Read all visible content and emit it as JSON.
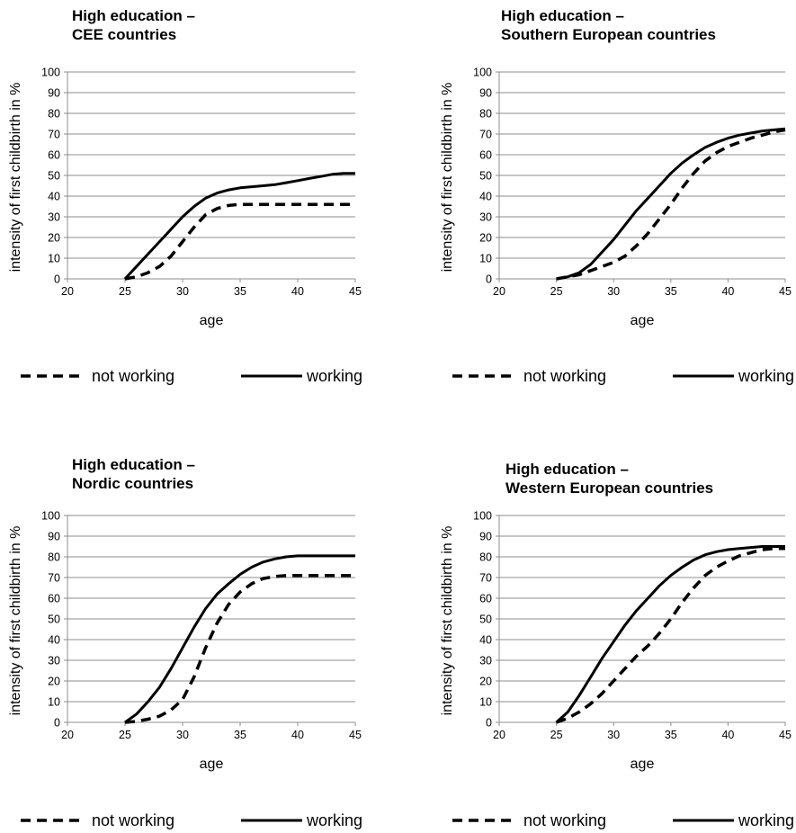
{
  "chart_data": [
    {
      "type": "line",
      "title_lines": [
        "High education –",
        "CEE countries"
      ],
      "xlabel": "age",
      "ylabel": "intensity of first childbirth in %",
      "xlim": [
        20,
        45
      ],
      "ylim": [
        0,
        100
      ],
      "xticks": [
        "20",
        "25",
        "30",
        "35",
        "40",
        "45"
      ],
      "yticks": [
        "0",
        "10",
        "20",
        "30",
        "40",
        "50",
        "60",
        "70",
        "80",
        "90",
        "100"
      ],
      "series": [
        {
          "name": "not working",
          "style": "dashed",
          "points": [
            [
              25,
              0
            ],
            [
              26,
              1
            ],
            [
              27,
              3
            ],
            [
              28,
              6
            ],
            [
              29,
              11
            ],
            [
              30,
              18
            ],
            [
              31,
              25
            ],
            [
              32,
              31
            ],
            [
              33,
              34
            ],
            [
              34,
              35.5
            ],
            [
              35,
              36
            ],
            [
              37,
              36
            ],
            [
              40,
              36
            ],
            [
              45,
              36
            ]
          ]
        },
        {
          "name": "working",
          "style": "solid",
          "points": [
            [
              25,
              0
            ],
            [
              26,
              6
            ],
            [
              27,
              12
            ],
            [
              28,
              18
            ],
            [
              29,
              24
            ],
            [
              30,
              30
            ],
            [
              31,
              35
            ],
            [
              32,
              39
            ],
            [
              33,
              41.5
            ],
            [
              34,
              43
            ],
            [
              35,
              44
            ],
            [
              36,
              44.5
            ],
            [
              37,
              45
            ],
            [
              38,
              45.5
            ],
            [
              39,
              46.5
            ],
            [
              40,
              47.5
            ],
            [
              41,
              48.5
            ],
            [
              42,
              49.5
            ],
            [
              43,
              50.5
            ],
            [
              44,
              51
            ],
            [
              45,
              51
            ]
          ]
        }
      ]
    },
    {
      "type": "line",
      "title_lines": [
        "High education –",
        "Southern European countries"
      ],
      "xlabel": "age",
      "ylabel": "intensity of first childbirth in %",
      "xlim": [
        20,
        45
      ],
      "ylim": [
        0,
        100
      ],
      "xticks": [
        "20",
        "25",
        "30",
        "35",
        "40",
        "45"
      ],
      "yticks": [
        "0",
        "10",
        "20",
        "30",
        "40",
        "50",
        "60",
        "70",
        "80",
        "90",
        "100"
      ],
      "series": [
        {
          "name": "not working",
          "style": "dashed",
          "points": [
            [
              25,
              0
            ],
            [
              26,
              1
            ],
            [
              27,
              2
            ],
            [
              28,
              4
            ],
            [
              29,
              6
            ],
            [
              30,
              8
            ],
            [
              31,
              11
            ],
            [
              32,
              16
            ],
            [
              33,
              22
            ],
            [
              34,
              29
            ],
            [
              35,
              36
            ],
            [
              36,
              44
            ],
            [
              37,
              51
            ],
            [
              38,
              57
            ],
            [
              39,
              61
            ],
            [
              40,
              64
            ],
            [
              41,
              66
            ],
            [
              42,
              68
            ],
            [
              43,
              69.5
            ],
            [
              44,
              71
            ],
            [
              45,
              72
            ]
          ]
        },
        {
          "name": "working",
          "style": "solid",
          "points": [
            [
              25,
              0
            ],
            [
              26,
              1
            ],
            [
              27,
              3
            ],
            [
              28,
              7
            ],
            [
              29,
              13
            ],
            [
              30,
              19
            ],
            [
              31,
              26
            ],
            [
              32,
              33
            ],
            [
              33,
              39
            ],
            [
              34,
              45
            ],
            [
              35,
              51
            ],
            [
              36,
              56
            ],
            [
              37,
              60
            ],
            [
              38,
              63.5
            ],
            [
              39,
              66
            ],
            [
              40,
              68
            ],
            [
              41,
              69.5
            ],
            [
              42,
              70.5
            ],
            [
              43,
              71.5
            ],
            [
              44,
              72
            ],
            [
              45,
              72.5
            ]
          ]
        }
      ]
    },
    {
      "type": "line",
      "title_lines": [
        "High education –",
        "Nordic countries"
      ],
      "xlabel": "age",
      "ylabel": "intensity of first childbirth in %",
      "xlim": [
        20,
        45
      ],
      "ylim": [
        0,
        100
      ],
      "xticks": [
        "20",
        "25",
        "30",
        "35",
        "40",
        "45"
      ],
      "yticks": [
        "0",
        "10",
        "20",
        "30",
        "40",
        "50",
        "60",
        "70",
        "80",
        "90",
        "100"
      ],
      "series": [
        {
          "name": "not working",
          "style": "dashed",
          "points": [
            [
              25,
              0
            ],
            [
              26,
              0.5
            ],
            [
              27,
              1.5
            ],
            [
              28,
              3
            ],
            [
              29,
              6
            ],
            [
              30,
              11
            ],
            [
              31,
              22
            ],
            [
              32,
              36
            ],
            [
              33,
              48
            ],
            [
              34,
              57
            ],
            [
              35,
              63
            ],
            [
              36,
              67
            ],
            [
              37,
              69.5
            ],
            [
              38,
              70.5
            ],
            [
              39,
              71
            ],
            [
              40,
              71
            ],
            [
              45,
              71
            ]
          ]
        },
        {
          "name": "working",
          "style": "solid",
          "points": [
            [
              25,
              0
            ],
            [
              26,
              4
            ],
            [
              27,
              10
            ],
            [
              28,
              17
            ],
            [
              29,
              26
            ],
            [
              30,
              36
            ],
            [
              31,
              46
            ],
            [
              32,
              55
            ],
            [
              33,
              62
            ],
            [
              34,
              67
            ],
            [
              35,
              71.5
            ],
            [
              36,
              75
            ],
            [
              37,
              77.5
            ],
            [
              38,
              79
            ],
            [
              39,
              80
            ],
            [
              40,
              80.5
            ],
            [
              42,
              80.5
            ],
            [
              45,
              80.5
            ]
          ]
        }
      ]
    },
    {
      "type": "line",
      "title_lines": [
        "High education –",
        "Western European countries"
      ],
      "xlabel": "age",
      "ylabel": "intensity of first childbirth in %",
      "xlim": [
        20,
        45
      ],
      "ylim": [
        0,
        100
      ],
      "xticks": [
        "20",
        "25",
        "30",
        "35",
        "40",
        "45"
      ],
      "yticks": [
        "0",
        "10",
        "20",
        "30",
        "40",
        "50",
        "60",
        "70",
        "80",
        "90",
        "100"
      ],
      "series": [
        {
          "name": "not working",
          "style": "dashed",
          "points": [
            [
              25,
              0
            ],
            [
              26,
              2
            ],
            [
              27,
              5
            ],
            [
              28,
              9
            ],
            [
              29,
              14
            ],
            [
              30,
              20
            ],
            [
              31,
              26
            ],
            [
              32,
              32
            ],
            [
              33,
              37
            ],
            [
              34,
              43
            ],
            [
              35,
              50
            ],
            [
              36,
              58
            ],
            [
              37,
              65
            ],
            [
              38,
              71
            ],
            [
              39,
              75
            ],
            [
              40,
              78
            ],
            [
              41,
              80.5
            ],
            [
              42,
              82
            ],
            [
              43,
              83.5
            ],
            [
              44,
              84
            ],
            [
              45,
              84
            ]
          ]
        },
        {
          "name": "working",
          "style": "solid",
          "points": [
            [
              25,
              0
            ],
            [
              26,
              5
            ],
            [
              27,
              13
            ],
            [
              28,
              22
            ],
            [
              29,
              31
            ],
            [
              30,
              39
            ],
            [
              31,
              47
            ],
            [
              32,
              54
            ],
            [
              33,
              60
            ],
            [
              34,
              66
            ],
            [
              35,
              71
            ],
            [
              36,
              75
            ],
            [
              37,
              78.5
            ],
            [
              38,
              81
            ],
            [
              39,
              82.5
            ],
            [
              40,
              83.5
            ],
            [
              41,
              84
            ],
            [
              42,
              84.5
            ],
            [
              43,
              85
            ],
            [
              44,
              85
            ],
            [
              45,
              85
            ]
          ]
        }
      ]
    }
  ]
}
